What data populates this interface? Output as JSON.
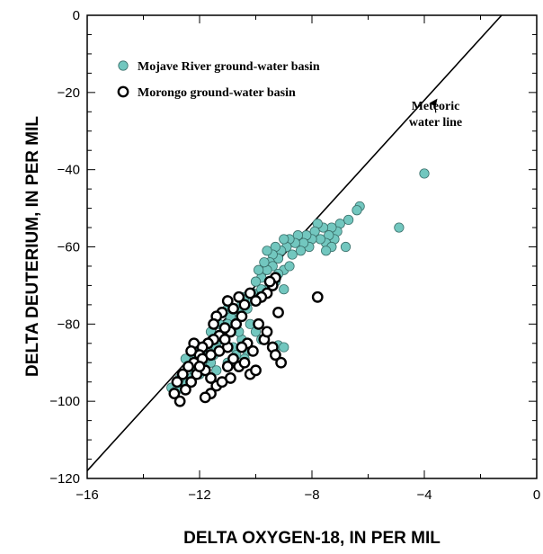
{
  "chart_data": {
    "type": "scatter",
    "xlabel": "DELTA OXYGEN-18, IN PER MIL",
    "ylabel": "DELTA DEUTERIUM, IN PER MIL",
    "xlim": [
      -16,
      0
    ],
    "ylim": [
      -120,
      0
    ],
    "x_ticks": [
      -16,
      -12,
      -8,
      -4,
      0
    ],
    "y_ticks": [
      0,
      -20,
      -40,
      -60,
      -80,
      -100,
      -120
    ],
    "x_tick_labels": [
      "−16",
      "−12",
      "−8",
      "−4",
      "0"
    ],
    "y_tick_labels": [
      "0",
      "−20",
      "−40",
      "−60",
      "−80",
      "−100",
      "−120"
    ],
    "grid": false,
    "legend_position": "top-left",
    "reference_line": {
      "label": "Meteoric water line",
      "label_lines": [
        "Meteoric",
        "water line"
      ],
      "slope": 8,
      "intercept": 10
    },
    "series": [
      {
        "name": "Mojave River ground-water basin",
        "marker": "filled-circle",
        "color": "#72c7bf",
        "points": [
          [
            -4.0,
            -41
          ],
          [
            -4.9,
            -55
          ],
          [
            -6.3,
            -49.5
          ],
          [
            -6.4,
            -50.5
          ],
          [
            -6.7,
            -53
          ],
          [
            -6.8,
            -60
          ],
          [
            -7.0,
            -54
          ],
          [
            -7.1,
            -56
          ],
          [
            -7.2,
            -58
          ],
          [
            -7.3,
            -55
          ],
          [
            -7.4,
            -57
          ],
          [
            -7.5,
            -59
          ],
          [
            -7.6,
            -55
          ],
          [
            -7.7,
            -58
          ],
          [
            -7.8,
            -54
          ],
          [
            -7.9,
            -56
          ],
          [
            -8.0,
            -58
          ],
          [
            -8.1,
            -60
          ],
          [
            -8.2,
            -57
          ],
          [
            -8.3,
            -59
          ],
          [
            -8.4,
            -61
          ],
          [
            -8.5,
            -57
          ],
          [
            -8.6,
            -59
          ],
          [
            -8.7,
            -62
          ],
          [
            -8.8,
            -58
          ],
          [
            -8.9,
            -60
          ],
          [
            -9.0,
            -58
          ],
          [
            -9.1,
            -61
          ],
          [
            -9.2,
            -63
          ],
          [
            -9.3,
            -60
          ],
          [
            -9.4,
            -62
          ],
          [
            -9.5,
            -64
          ],
          [
            -9.6,
            -61
          ],
          [
            -9.0,
            -66
          ],
          [
            -9.2,
            -67
          ],
          [
            -8.8,
            -65
          ],
          [
            -9.4,
            -65
          ],
          [
            -9.6,
            -66
          ],
          [
            -9.8,
            -68
          ],
          [
            -9.7,
            -64
          ],
          [
            -9.9,
            -66
          ],
          [
            -10.0,
            -69
          ],
          [
            -9.5,
            -70
          ],
          [
            -9.0,
            -71
          ],
          [
            -9.3,
            -69
          ],
          [
            -9.8,
            -71
          ],
          [
            -10.1,
            -72
          ],
          [
            -10.2,
            -74
          ],
          [
            -10.3,
            -76
          ],
          [
            -10.4,
            -73
          ],
          [
            -10.5,
            -75
          ],
          [
            -10.6,
            -77
          ],
          [
            -10.7,
            -79
          ],
          [
            -10.8,
            -76
          ],
          [
            -10.9,
            -78
          ],
          [
            -11.0,
            -80
          ],
          [
            -11.1,
            -82
          ],
          [
            -11.2,
            -84
          ],
          [
            -11.3,
            -80
          ],
          [
            -11.4,
            -86
          ],
          [
            -11.5,
            -88
          ],
          [
            -11.6,
            -90
          ],
          [
            -11.7,
            -87
          ],
          [
            -11.8,
            -89
          ],
          [
            -11.9,
            -91
          ],
          [
            -12.0,
            -93
          ],
          [
            -12.1,
            -90
          ],
          [
            -12.2,
            -92
          ],
          [
            -12.3,
            -94
          ],
          [
            -12.4,
            -91
          ],
          [
            -12.5,
            -95
          ],
          [
            -12.6,
            -93
          ],
          [
            -12.7,
            -94
          ],
          [
            -13.0,
            -96.5
          ],
          [
            -12.8,
            -97
          ],
          [
            -10.5,
            -84
          ],
          [
            -10.3,
            -87
          ],
          [
            -10.0,
            -82
          ],
          [
            -10.4,
            -89
          ],
          [
            -9.2,
            -85.5
          ],
          [
            -9.0,
            -86
          ],
          [
            -9.8,
            -84
          ],
          [
            -10.6,
            -82
          ],
          [
            -10.8,
            -86
          ],
          [
            -10.2,
            -80
          ],
          [
            -11.0,
            -76
          ],
          [
            -11.3,
            -84
          ],
          [
            -11.6,
            -82
          ],
          [
            -12.0,
            -86
          ],
          [
            -12.2,
            -88
          ],
          [
            -11.4,
            -92
          ],
          [
            -11.0,
            -90
          ],
          [
            -10.7,
            -88
          ],
          [
            -12.5,
            -89
          ],
          [
            -7.3,
            -60
          ],
          [
            -7.5,
            -61
          ]
        ]
      },
      {
        "name": "Morongo ground-water basin",
        "marker": "open-circle",
        "color": "#000000",
        "points": [
          [
            -7.8,
            -73
          ],
          [
            -9.2,
            -77
          ],
          [
            -9.3,
            -68
          ],
          [
            -9.4,
            -70
          ],
          [
            -9.5,
            -69
          ],
          [
            -9.6,
            -72
          ],
          [
            -9.8,
            -73
          ],
          [
            -10.0,
            -74
          ],
          [
            -10.2,
            -72
          ],
          [
            -10.4,
            -75
          ],
          [
            -10.6,
            -73
          ],
          [
            -10.8,
            -76
          ],
          [
            -11.0,
            -74
          ],
          [
            -11.2,
            -77
          ],
          [
            -11.4,
            -78
          ],
          [
            -11.5,
            -80
          ],
          [
            -10.5,
            -78
          ],
          [
            -10.7,
            -80
          ],
          [
            -10.9,
            -82
          ],
          [
            -11.1,
            -81
          ],
          [
            -11.3,
            -83
          ],
          [
            -11.5,
            -84
          ],
          [
            -11.7,
            -85
          ],
          [
            -11.9,
            -86
          ],
          [
            -12.0,
            -88
          ],
          [
            -12.2,
            -90
          ],
          [
            -12.4,
            -91
          ],
          [
            -12.6,
            -93
          ],
          [
            -12.8,
            -95
          ],
          [
            -12.9,
            -98
          ],
          [
            -12.7,
            -100
          ],
          [
            -12.5,
            -97
          ],
          [
            -12.3,
            -95
          ],
          [
            -12.1,
            -93
          ],
          [
            -11.8,
            -92
          ],
          [
            -11.6,
            -94
          ],
          [
            -11.4,
            -96
          ],
          [
            -11.6,
            -98
          ],
          [
            -11.8,
            -99
          ],
          [
            -11.2,
            -95
          ],
          [
            -11.0,
            -91
          ],
          [
            -10.8,
            -89
          ],
          [
            -10.6,
            -91
          ],
          [
            -10.4,
            -90
          ],
          [
            -10.2,
            -93
          ],
          [
            -10.0,
            -92
          ],
          [
            -9.7,
            -84
          ],
          [
            -9.6,
            -82
          ],
          [
            -9.4,
            -86
          ],
          [
            -9.3,
            -88
          ],
          [
            -9.1,
            -90
          ],
          [
            -10.3,
            -85
          ],
          [
            -10.1,
            -87
          ],
          [
            -9.9,
            -80
          ],
          [
            -11.0,
            -86
          ],
          [
            -11.3,
            -87
          ],
          [
            -11.9,
            -89
          ],
          [
            -12.2,
            -85
          ],
          [
            -11.6,
            -88
          ],
          [
            -10.9,
            -94
          ],
          [
            -10.5,
            -86
          ],
          [
            -11.1,
            -84
          ],
          [
            -12.0,
            -91
          ],
          [
            -12.3,
            -87
          ]
        ]
      }
    ]
  }
}
